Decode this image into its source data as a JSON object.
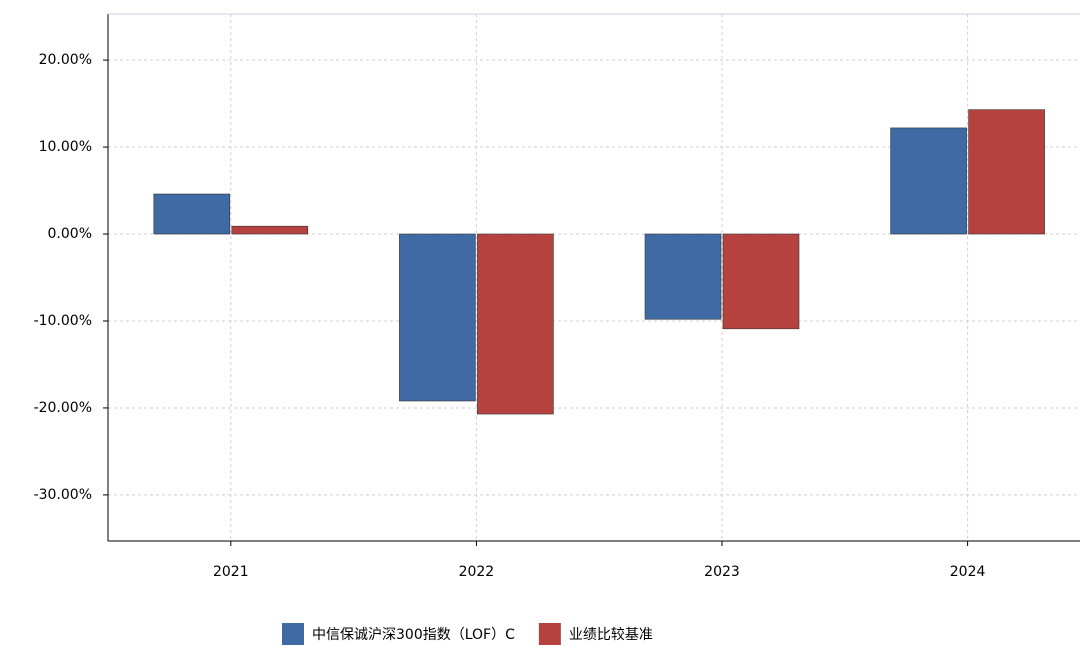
{
  "chart_data": {
    "type": "bar",
    "categories": [
      "2021",
      "2022",
      "2023",
      "2024"
    ],
    "series": [
      {
        "name": "中信保诚沪深300指数（LOF）C",
        "color": "#3f6aa3",
        "values": [
          4.6,
          -19.2,
          -9.8,
          12.2
        ]
      },
      {
        "name": "业绩比较基准",
        "color": "#b5423f",
        "values": [
          0.9,
          -20.7,
          -10.9,
          14.3
        ]
      }
    ],
    "ylim": [
      -35.3,
      25.3
    ],
    "yticks": [
      {
        "value": 20,
        "label": "20.00%"
      },
      {
        "value": 10,
        "label": "10.00%"
      },
      {
        "value": 0,
        "label": "0.00%"
      },
      {
        "value": -10,
        "label": "-10.00%"
      },
      {
        "value": -20,
        "label": "-20.00%"
      },
      {
        "value": -30,
        "label": "-30.00%"
      }
    ],
    "grid": true
  }
}
